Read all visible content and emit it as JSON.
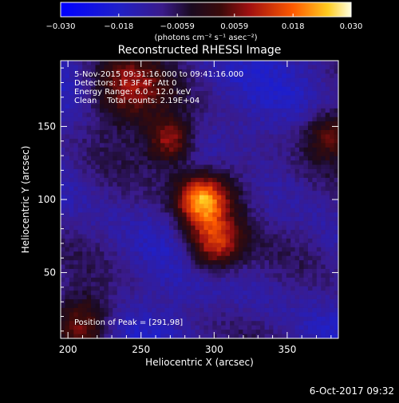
{
  "chart_data": {
    "type": "heatmap",
    "title": "Reconstructed RHESSI Image",
    "xlabel": "Heliocentric X (arcsec)",
    "ylabel": "Heliocentric Y (arcsec)",
    "xlim": [
      195,
      385
    ],
    "ylim": [
      5,
      195
    ],
    "x_ticks": [
      200,
      250,
      300,
      350
    ],
    "y_ticks": [
      50,
      100,
      150
    ],
    "colorbar": {
      "range": [
        -0.03,
        0.03
      ],
      "tick_values": [
        -0.03,
        -0.018,
        -0.0059,
        0.0059,
        0.018,
        0.03
      ],
      "tick_labels": [
        "−0.030",
        "−0.018",
        "−0.0059",
        "0.0059",
        "0.018",
        "0.030"
      ],
      "units": "(photons cm⁻² s⁻¹ asec⁻²)"
    },
    "info_lines": [
      "5-Nov-2015 09:31:16.000 to 09:41:16.000",
      "Detectors: 1F 3F 4F, Att 0",
      "Energy Range: 6.0 - 12.0 keV",
      "Clean    Total counts: 2.19E+04"
    ],
    "peak_label": "Position of Peak = [291,98]",
    "peak": [
      291,
      98
    ],
    "sources": [
      {
        "x": 291,
        "y": 100,
        "amp": 0.03,
        "sigma": 12
      },
      {
        "x": 300,
        "y": 70,
        "amp": 0.026,
        "sigma": 14
      },
      {
        "x": 270,
        "y": 140,
        "amp": 0.02,
        "sigma": 11
      },
      {
        "x": 240,
        "y": 175,
        "amp": 0.018,
        "sigma": 20
      },
      {
        "x": 210,
        "y": 15,
        "amp": 0.018,
        "sigma": 14
      },
      {
        "x": 380,
        "y": 145,
        "amp": 0.015,
        "sigma": 12
      },
      {
        "x": 310,
        "y": 110,
        "amp": 0.01,
        "sigma": 18
      }
    ],
    "background_level": -0.012
  },
  "footer": {
    "date_stamp": "6-Oct-2017 09:32"
  }
}
